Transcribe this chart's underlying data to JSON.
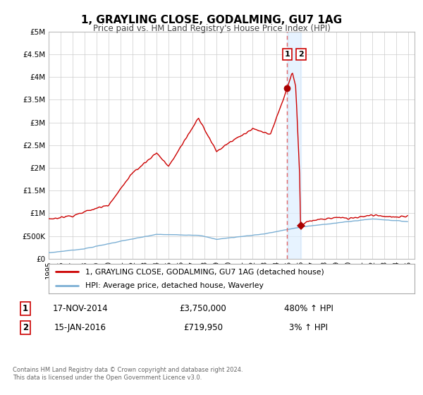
{
  "title": "1, GRAYLING CLOSE, GODALMING, GU7 1AG",
  "subtitle": "Price paid vs. HM Land Registry's House Price Index (HPI)",
  "line1_label": "1, GRAYLING CLOSE, GODALMING, GU7 1AG (detached house)",
  "line2_label": "HPI: Average price, detached house, Waverley",
  "line1_color": "#cc0000",
  "line2_color": "#7bafd4",
  "marker_color": "#aa0000",
  "dashed_line_color": "#dd6666",
  "solid_line_color": "#880000",
  "annotation1_num": "1",
  "annotation2_num": "2",
  "annotation1_date": "17-NOV-2014",
  "annotation1_price": "£3,750,000",
  "annotation1_hpi": "480% ↑ HPI",
  "annotation2_date": "15-JAN-2016",
  "annotation2_price": "£719,950",
  "annotation2_hpi": "3% ↑ HPI",
  "footer": "Contains HM Land Registry data © Crown copyright and database right 2024.\nThis data is licensed under the Open Government Licence v3.0.",
  "ylim": [
    0,
    5000000
  ],
  "yticks": [
    0,
    500000,
    1000000,
    1500000,
    2000000,
    2500000,
    3000000,
    3500000,
    4000000,
    4500000,
    5000000
  ],
  "ytick_labels": [
    "£0",
    "£500K",
    "£1M",
    "£1.5M",
    "£2M",
    "£2.5M",
    "£3M",
    "£3.5M",
    "£4M",
    "£4.5M",
    "£5M"
  ],
  "xlim_start": 1995.0,
  "xlim_end": 2025.5,
  "event1_x": 2014.88,
  "event1_y": 3750000,
  "event2_x": 2016.04,
  "event2_y": 719950,
  "background_color": "#ffffff",
  "grid_color": "#cccccc",
  "shade_color": "#ddeeff"
}
